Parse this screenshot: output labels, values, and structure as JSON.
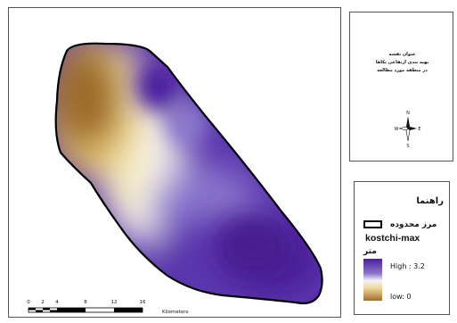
{
  "map": {
    "layer": "kostchi-max",
    "legend": {
      "heading": "راهنما",
      "boundary_label": "مرز محدوده",
      "unit_label": "متر",
      "high_label": "High : 3.2",
      "low_label": "low: 0",
      "high_value": 3.2,
      "low_value": 0,
      "high_color": "#4b1fa0",
      "low_color": "#a06e2a"
    },
    "title_block": {
      "line1": "عنوان نقشه",
      "line2": "پهنه بندی ارتفاعی تکاها",
      "line3": "در منطقه مورد مطالعه"
    },
    "north_arrow": {
      "n": "N",
      "s": "S",
      "e": "E",
      "w": "W",
      "icon": "compass-rose-icon"
    },
    "scale_bar": {
      "ticks": [
        "0",
        "2",
        "4",
        "8",
        "12",
        "16"
      ],
      "unit": "Kilometers"
    }
  }
}
